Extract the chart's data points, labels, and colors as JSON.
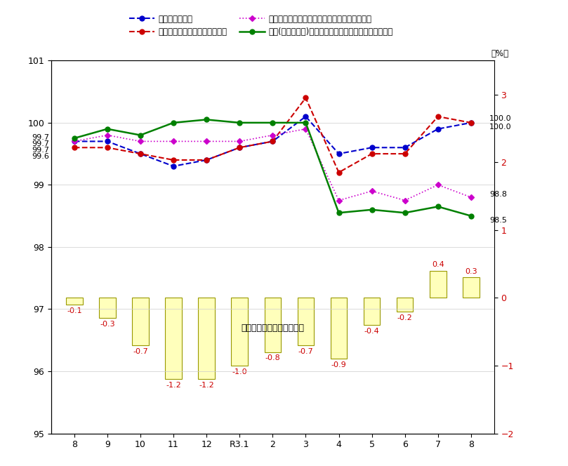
{
  "unit_label": "（%）",
  "x_labels": [
    "8",
    "9",
    "10",
    "11",
    "12",
    "R3.1",
    "2",
    "3",
    "4",
    "5",
    "6",
    "7",
    "8"
  ],
  "left_ylim": [
    95.0,
    101.0
  ],
  "right_ylim": [
    -2.0,
    3.5
  ],
  "left_yticks": [
    95.0,
    96.0,
    97.0,
    98.0,
    99.0,
    100.0,
    101.0
  ],
  "right_yticks": [
    -2.0,
    -1.0,
    0.0,
    1.0,
    2.0,
    3.0
  ],
  "line1_label": "総合（左目盛）",
  "line1_color": "#0000cc",
  "line1_values": [
    99.7,
    99.7,
    99.5,
    99.3,
    99.4,
    99.6,
    99.7,
    100.1,
    99.5,
    99.6,
    99.6,
    99.9,
    100.0
  ],
  "line2_label": "生鮮食品を除く総合（左目盛）",
  "line2_color": "#cc0000",
  "line2_values": [
    99.6,
    99.6,
    99.5,
    99.4,
    99.4,
    99.6,
    99.7,
    100.4,
    99.2,
    99.5,
    99.5,
    100.1,
    100.0
  ],
  "line3_label": "生鮮食品及びエネルギーを除く総合（左目盛）",
  "line3_color": "#cc00cc",
  "line3_values": [
    99.7,
    99.8,
    99.7,
    99.7,
    99.7,
    99.7,
    99.8,
    99.9,
    98.75,
    98.9,
    98.75,
    99.0,
    98.8
  ],
  "line4_label": "食料(酒類を除く)及びエネルギーを除く総合（左目盛）",
  "line4_color": "#008000",
  "line4_values": [
    99.75,
    99.9,
    99.8,
    100.0,
    100.05,
    100.0,
    100.0,
    100.0,
    98.55,
    98.6,
    98.55,
    98.65,
    98.5
  ],
  "bar_values": [
    -0.1,
    -0.3,
    -0.7,
    -1.2,
    -1.2,
    -1.0,
    -0.8,
    -0.7,
    -0.9,
    -0.4,
    -0.2,
    0.4,
    0.3
  ],
  "bar_color": "#ffffbb",
  "bar_edge_color": "#999900",
  "bar_label_color": "#cc0000",
  "bar_labels": [
    "-0.1",
    "-0.3",
    "-0.7",
    "-1.2",
    "-1.2",
    "-1.0",
    "-0.8",
    "-0.7",
    "-0.9",
    "-0.4",
    "-0.2",
    "0.4",
    "0.3"
  ],
  "bar_text_label": "総合前年同月比（右目盛）",
  "ann_start_line1": "99.7",
  "ann_start_line3": "99.7",
  "ann_start_line4": "99.7",
  "ann_start_line2": "99.6",
  "ann_end_line2": "100.0",
  "ann_end_line1": "100.0",
  "ann_end_line3": "98.8",
  "ann_end_line4": "98.5"
}
